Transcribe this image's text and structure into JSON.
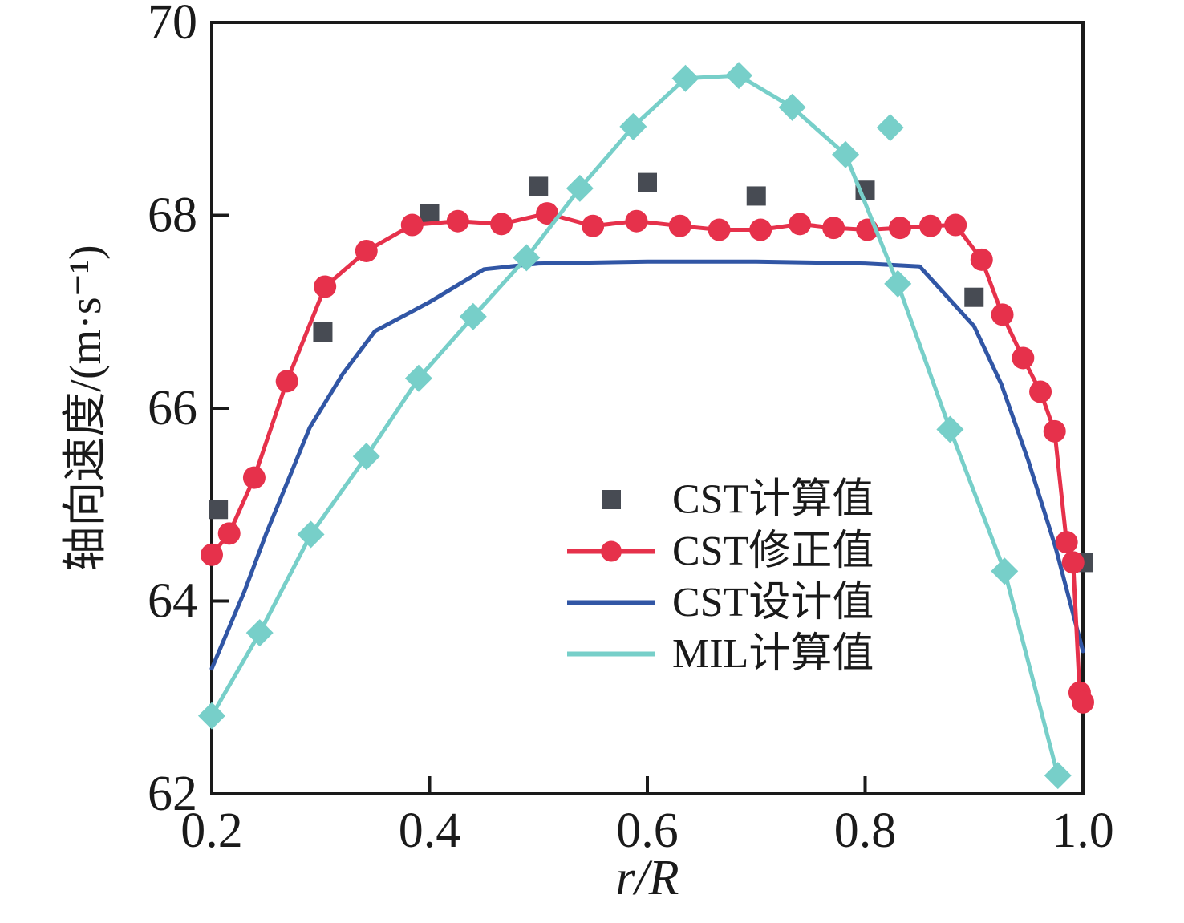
{
  "chart_data": {
    "type": "line",
    "title": "",
    "xlabel": "r/R",
    "ylabel": "轴向速度/(m·s⁻¹)",
    "xlim": [
      0.2,
      1.0
    ],
    "ylim": [
      62,
      70
    ],
    "grid": false,
    "legend_position": "inside-center-right",
    "x_ticks": {
      "values": [
        0.2,
        0.4,
        0.6,
        0.8,
        1.0
      ],
      "labels": [
        "0.2",
        "0.4",
        "0.6",
        "0.8",
        "1.0"
      ]
    },
    "y_ticks": {
      "values": [
        62,
        64,
        66,
        68,
        70
      ],
      "labels": [
        "62",
        "64",
        "66",
        "68",
        "70"
      ]
    },
    "series": [
      {
        "id": "cst-calculated",
        "label": "CST计算值",
        "color": "#474b53",
        "line": false,
        "marker": "square",
        "legend_swatch": "square",
        "points": [
          [
            0.206,
            64.95
          ],
          [
            0.302,
            66.79
          ],
          [
            0.4,
            68.02
          ],
          [
            0.5,
            68.3
          ],
          [
            0.6,
            68.34
          ],
          [
            0.7,
            68.2
          ],
          [
            0.8,
            68.26
          ],
          [
            0.9,
            67.15
          ],
          [
            1.0,
            64.4
          ]
        ]
      },
      {
        "id": "cst-corrected",
        "label": "CST修正值",
        "color": "#e6314b",
        "line": true,
        "marker": "circle",
        "legend_swatch": "line-circle",
        "points": [
          [
            0.2,
            64.48
          ],
          [
            0.216,
            64.7
          ],
          [
            0.239,
            65.28
          ],
          [
            0.269,
            66.28
          ],
          [
            0.304,
            67.26
          ],
          [
            0.342,
            67.63
          ],
          [
            0.384,
            67.9
          ],
          [
            0.426,
            67.94
          ],
          [
            0.466,
            67.91
          ],
          [
            0.508,
            68.02
          ],
          [
            0.55,
            67.89
          ],
          [
            0.59,
            67.94
          ],
          [
            0.63,
            67.89
          ],
          [
            0.666,
            67.85
          ],
          [
            0.704,
            67.85
          ],
          [
            0.74,
            67.91
          ],
          [
            0.771,
            67.87
          ],
          [
            0.802,
            67.85
          ],
          [
            0.832,
            67.87
          ],
          [
            0.86,
            67.89
          ],
          [
            0.883,
            67.9
          ],
          [
            0.907,
            67.54
          ],
          [
            0.926,
            66.97
          ],
          [
            0.945,
            66.52
          ],
          [
            0.961,
            66.17
          ],
          [
            0.974,
            65.76
          ],
          [
            0.985,
            64.61
          ],
          [
            0.991,
            64.4
          ],
          [
            0.997,
            63.05
          ],
          [
            1.0,
            62.95
          ]
        ]
      },
      {
        "id": "cst-design",
        "label": "CST设计值",
        "color": "#3156a5",
        "line": true,
        "marker": "none",
        "legend_swatch": "line",
        "points": [
          [
            0.2,
            63.3
          ],
          [
            0.23,
            64.1
          ],
          [
            0.25,
            64.7
          ],
          [
            0.29,
            65.8
          ],
          [
            0.32,
            66.35
          ],
          [
            0.35,
            66.8
          ],
          [
            0.4,
            67.1
          ],
          [
            0.45,
            67.44
          ],
          [
            0.5,
            67.5
          ],
          [
            0.6,
            67.52
          ],
          [
            0.7,
            67.52
          ],
          [
            0.8,
            67.5
          ],
          [
            0.85,
            67.47
          ],
          [
            0.9,
            66.85
          ],
          [
            0.925,
            66.25
          ],
          [
            0.95,
            65.45
          ],
          [
            0.975,
            64.55
          ],
          [
            1.0,
            63.48
          ]
        ]
      },
      {
        "id": "mil-calculated",
        "label": "MIL计算值",
        "color": "#77cfc9",
        "line": true,
        "marker": "diamond",
        "legend_swatch": "line",
        "points": [
          [
            0.2,
            62.81
          ],
          [
            0.244,
            63.67
          ],
          [
            0.291,
            64.69
          ],
          [
            0.342,
            65.5
          ],
          [
            0.39,
            66.31
          ],
          [
            0.44,
            66.95
          ],
          [
            0.489,
            67.56
          ],
          [
            0.538,
            68.28
          ],
          [
            0.587,
            68.92
          ],
          [
            0.635,
            69.42
          ],
          [
            0.684,
            69.45
          ],
          [
            0.733,
            69.12
          ],
          [
            0.782,
            68.63
          ],
          [
            0.83,
            67.29
          ],
          [
            0.878,
            65.78
          ],
          [
            0.928,
            64.31
          ],
          [
            0.977,
            62.19
          ]
        ],
        "detached_points": [
          [
            0.823,
            68.91
          ]
        ]
      }
    ]
  }
}
